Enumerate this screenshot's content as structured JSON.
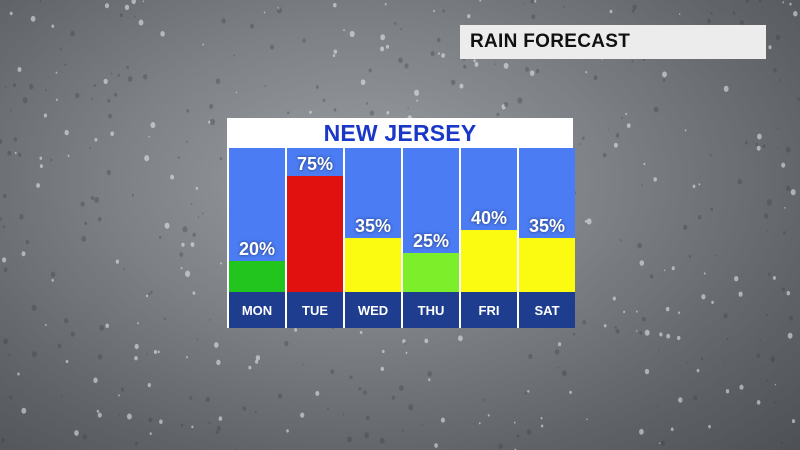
{
  "header": {
    "label": "RAIN FORECAST"
  },
  "chart_data": {
    "type": "bar",
    "title": "NEW JERSEY",
    "categories": [
      "MON",
      "TUE",
      "WED",
      "THU",
      "FRI",
      "SAT"
    ],
    "values": [
      20,
      75,
      35,
      25,
      40,
      35
    ],
    "value_labels": [
      "20%",
      "75%",
      "35%",
      "25%",
      "40%",
      "35%"
    ],
    "bar_colors": [
      "#22c41e",
      "#e0110e",
      "#fbfb12",
      "#7dee2a",
      "#fbfb12",
      "#fbfb12"
    ],
    "ylim": [
      0,
      100
    ],
    "grid": false,
    "column_color": "#4b7cf4",
    "day_band_color": "#1f3d8f"
  }
}
